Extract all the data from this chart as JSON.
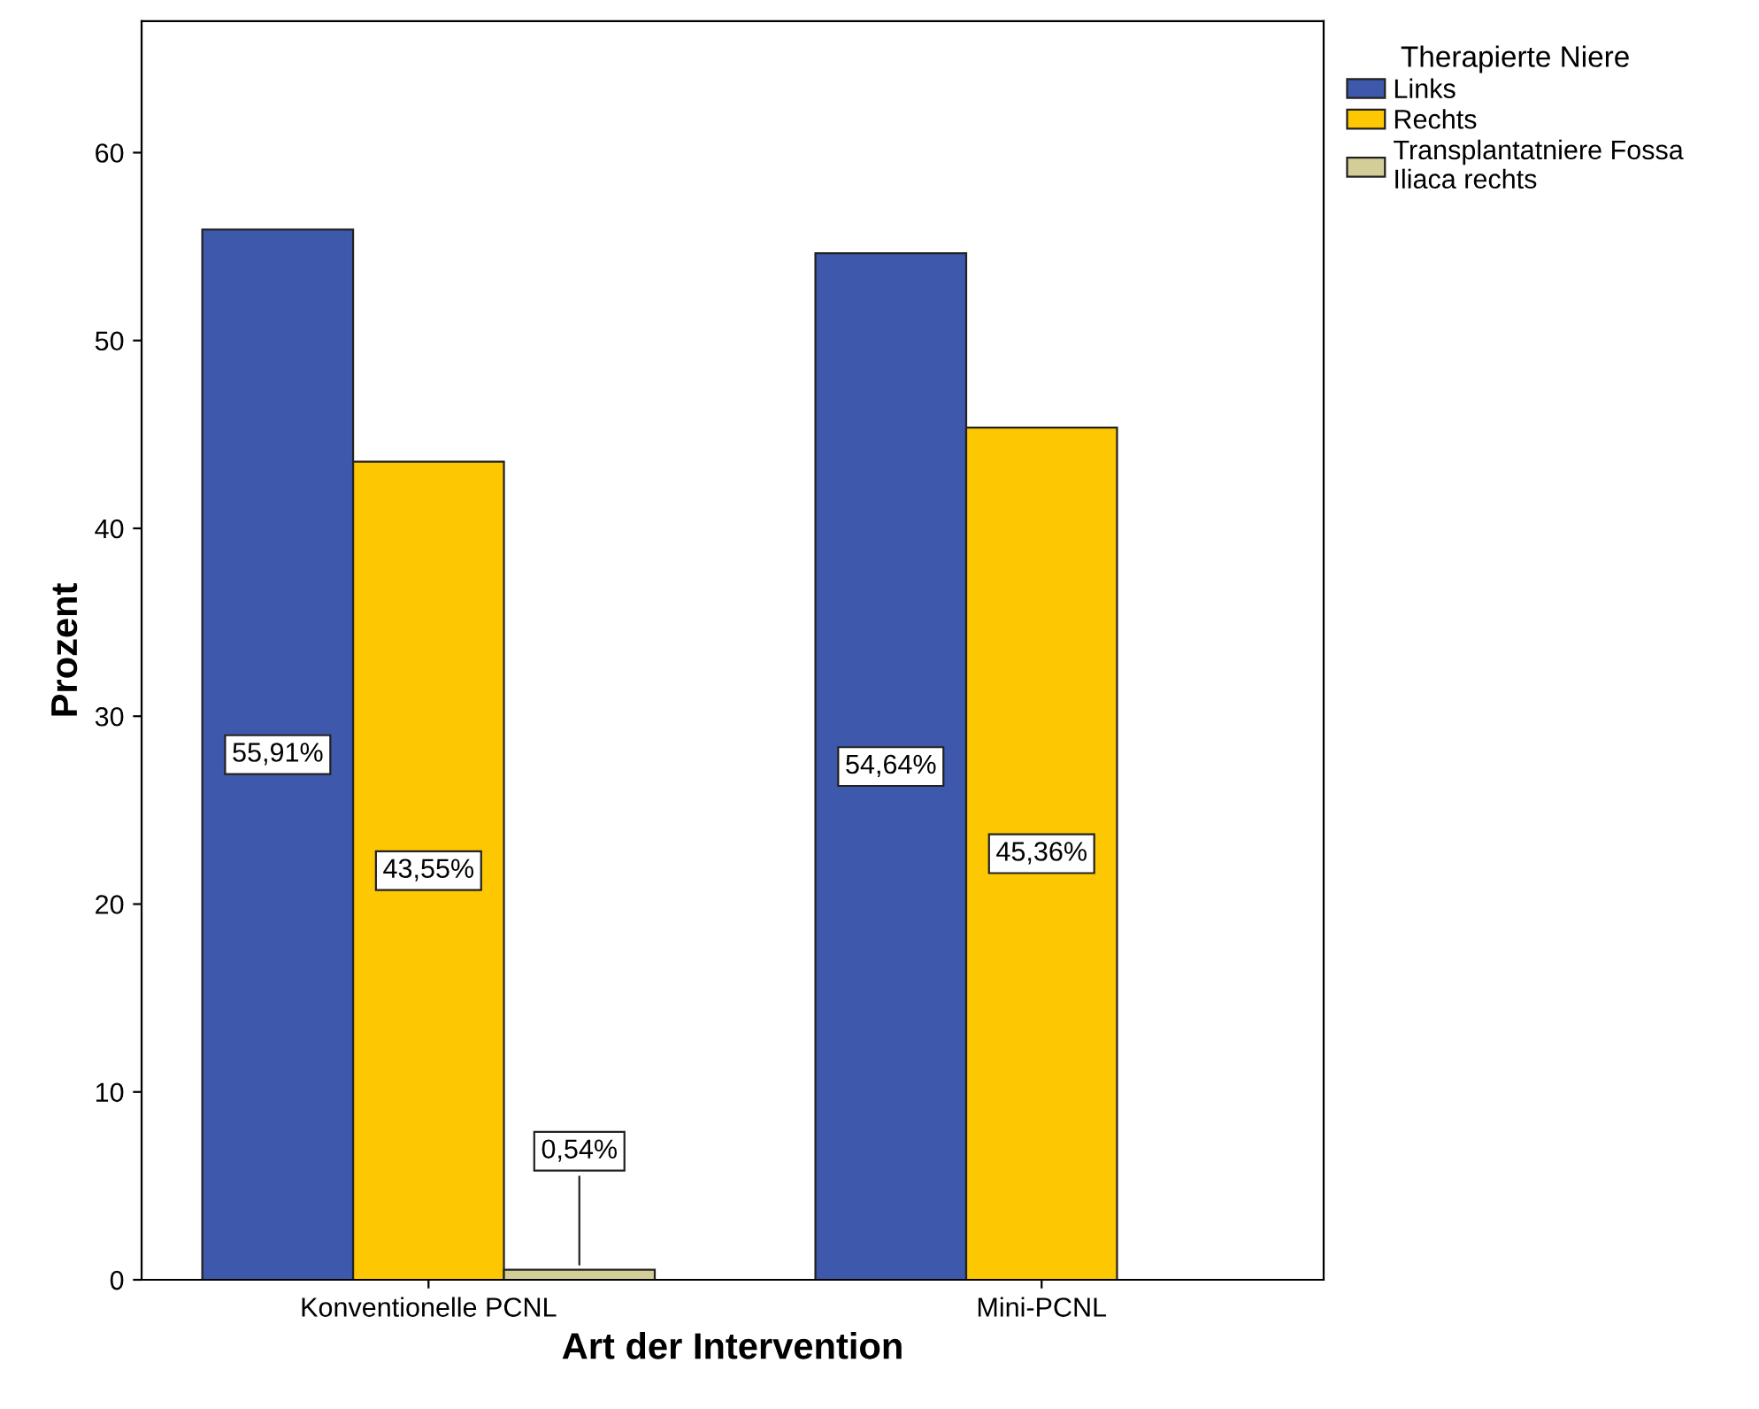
{
  "chart_data": {
    "type": "bar",
    "xlabel": "Art der Intervention",
    "ylabel": "Prozent",
    "legend_title": "Therapierte Niere",
    "categories": [
      "Konventionelle PCNL",
      "Mini-PCNL"
    ],
    "series": [
      {
        "name": "Links",
        "color": "#3e58ac",
        "values": [
          55.91,
          54.64
        ],
        "value_labels": [
          "55,91%",
          "54,64%"
        ]
      },
      {
        "name": "Rechts",
        "color": "#fdc701",
        "values": [
          43.55,
          45.36
        ],
        "value_labels": [
          "43,55%",
          "45,36%"
        ]
      },
      {
        "name": "Transplantatniere Fossa\nIliaca rechts",
        "color": "#d3ce97",
        "values": [
          0.54,
          null
        ],
        "value_labels": [
          "0,54%",
          null
        ]
      }
    ],
    "ylim": [
      0,
      67
    ],
    "yticks": [
      0,
      10,
      20,
      30,
      40,
      50,
      60
    ],
    "grid": false,
    "legend": "top right"
  }
}
